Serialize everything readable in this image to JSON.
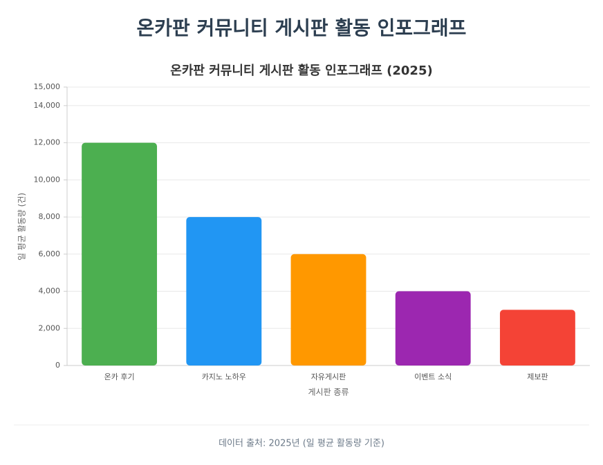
{
  "page_title": "온카판 커뮤니티 게시판 활동 인포그래프",
  "chart_data": {
    "type": "bar",
    "title": "온카판 커뮤니티 게시판 활동 인포그래프 (2025)",
    "x_label": "게시판 종류",
    "y_label": "일 평균 활동량 (건)",
    "categories": [
      "온카 후기",
      "카지노 노하우",
      "자유게시판",
      "이벤트 소식",
      "제보판"
    ],
    "values": [
      12000,
      8000,
      6000,
      4000,
      3000
    ],
    "colors": [
      "#4caf50",
      "#2196f3",
      "#ff9800",
      "#9c27b0",
      "#f44336"
    ],
    "ylim": [
      0,
      15000
    ],
    "yticks": [
      0,
      {
        "value": 2000,
        "label": "2,000"
      },
      {
        "value": 4000,
        "label": "4,000"
      },
      {
        "value": 6000,
        "label": "6,000"
      },
      {
        "value": 8000,
        "label": "8,000"
      },
      {
        "value": 10000,
        "label": "10,000"
      },
      {
        "value": 12000,
        "label": "12,000"
      },
      {
        "value": 14000,
        "label": "14,000"
      },
      {
        "value": 15000,
        "label": "15,000"
      }
    ],
    "grid": true
  },
  "footer": "데이터 출처: 2025년 (일 평균 활동량 기준)"
}
